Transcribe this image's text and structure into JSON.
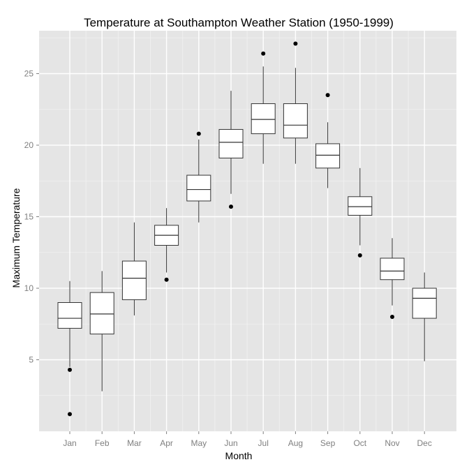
{
  "chart_data": {
    "type": "boxplot",
    "title": "Temperature at Southampton Weather Station (1950-1999)",
    "xlabel": "Month",
    "ylabel": "Maximum Temperature",
    "ylim": [
      0,
      28
    ],
    "yticks": [
      5,
      10,
      15,
      20,
      25
    ],
    "grid": true,
    "background": "#e5e5e5",
    "grid_major_color": "#ffffff",
    "grid_minor_color": "#f2f2f2",
    "categories": [
      "Jan",
      "Feb",
      "Mar",
      "Apr",
      "May",
      "Jun",
      "Jul",
      "Aug",
      "Sep",
      "Oct",
      "Nov",
      "Dec"
    ],
    "boxes": [
      {
        "min": 4.5,
        "q1": 7.2,
        "median": 7.9,
        "q3": 9.0,
        "max": 10.5,
        "outliers": [
          4.3,
          1.2
        ]
      },
      {
        "min": 2.8,
        "q1": 6.8,
        "median": 8.2,
        "q3": 9.7,
        "max": 11.2,
        "outliers": []
      },
      {
        "min": 8.1,
        "q1": 9.2,
        "median": 10.7,
        "q3": 11.9,
        "max": 14.6,
        "outliers": []
      },
      {
        "min": 11.1,
        "q1": 13.0,
        "median": 13.7,
        "q3": 14.4,
        "max": 15.6,
        "outliers": [
          10.6
        ]
      },
      {
        "min": 14.6,
        "q1": 16.1,
        "median": 16.9,
        "q3": 17.9,
        "max": 20.4,
        "outliers": [
          20.8
        ]
      },
      {
        "min": 16.6,
        "q1": 19.1,
        "median": 20.2,
        "q3": 21.1,
        "max": 23.8,
        "outliers": [
          15.7
        ]
      },
      {
        "min": 18.7,
        "q1": 20.8,
        "median": 21.8,
        "q3": 22.9,
        "max": 25.5,
        "outliers": [
          26.4
        ]
      },
      {
        "min": 18.7,
        "q1": 20.5,
        "median": 21.4,
        "q3": 22.9,
        "max": 25.4,
        "outliers": [
          27.1
        ]
      },
      {
        "min": 17.0,
        "q1": 18.4,
        "median": 19.3,
        "q3": 20.1,
        "max": 21.6,
        "outliers": [
          23.5
        ]
      },
      {
        "min": 13.0,
        "q1": 15.1,
        "median": 15.7,
        "q3": 16.4,
        "max": 18.4,
        "outliers": [
          12.3
        ]
      },
      {
        "min": 8.8,
        "q1": 10.6,
        "median": 11.2,
        "q3": 12.1,
        "max": 13.5,
        "outliers": [
          8.0
        ]
      },
      {
        "min": 4.9,
        "q1": 7.9,
        "median": 9.3,
        "q3": 10.0,
        "max": 11.1,
        "outliers": []
      }
    ]
  }
}
